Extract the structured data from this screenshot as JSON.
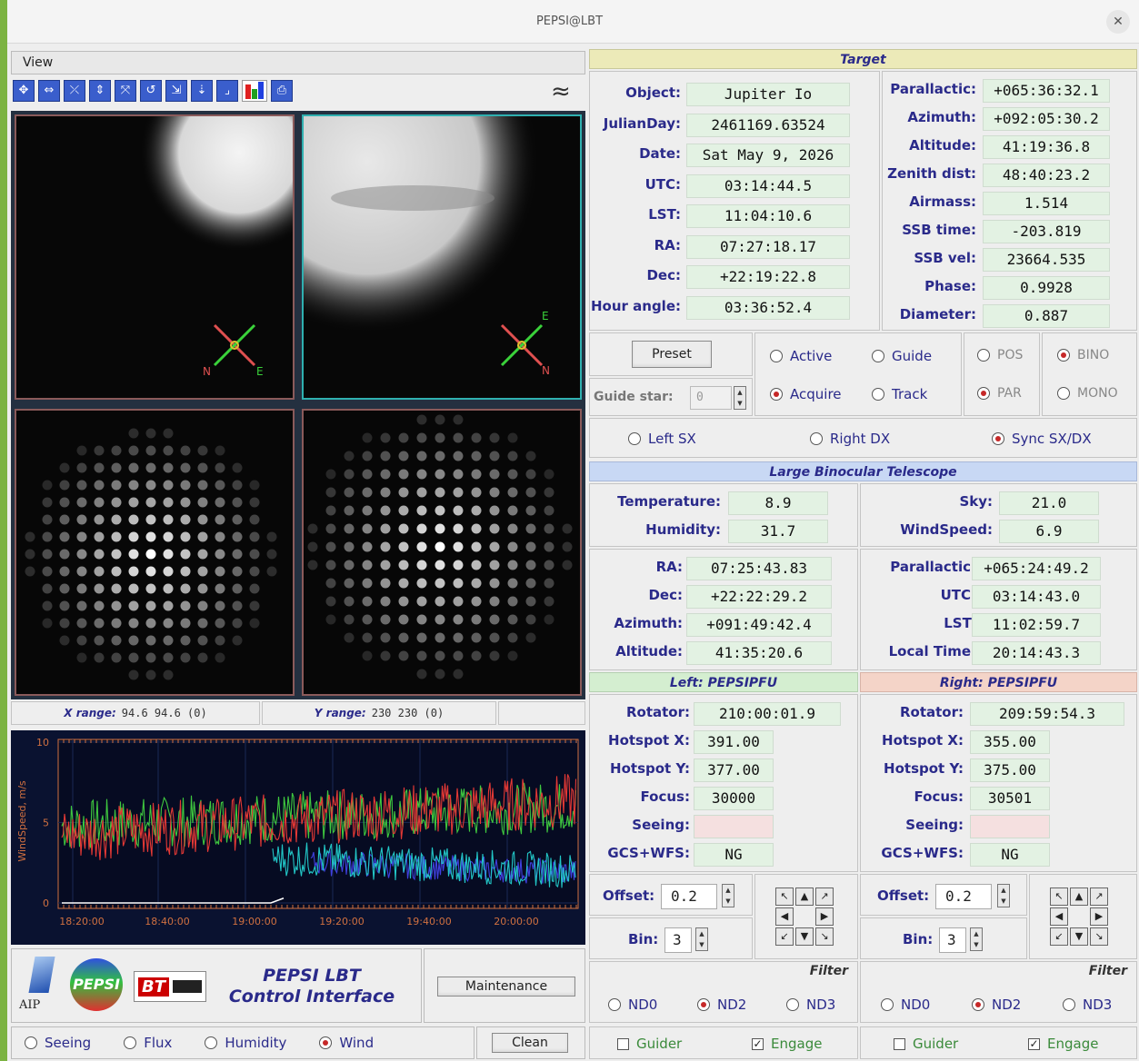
{
  "window": {
    "title": "PEPSI@LBT"
  },
  "menu": {
    "view": "View"
  },
  "toolbar": {
    "icons": [
      "move-icon",
      "horizontal-arrows-icon",
      "shrink-icon",
      "vertical-arrows-icon",
      "expand-icon",
      "rotate-left-icon",
      "flip-icon",
      "flip-down-icon",
      "flip-corner-icon",
      "histogram-icon",
      "print-icon"
    ],
    "wave_symbol": "≈"
  },
  "images": {
    "x_range_label": "X range:",
    "x_range_value": "94.6 94.6 (0)",
    "y_range_label": "Y range:",
    "y_range_value": "230 230 (0)",
    "compass": {
      "n": "N",
      "e": "E"
    }
  },
  "plot": {
    "ylabel": "WindSpeed, m/s",
    "y_ticks": [
      "10",
      "5",
      "0"
    ],
    "x_ticks": [
      "18:20:00",
      "18:40:00",
      "19:00:00",
      "19:20:00",
      "19:40:00",
      "20:00:00"
    ],
    "colors": {
      "red": "#e53935",
      "green": "#3fc93f",
      "cyan": "#22c7c7",
      "blue": "#4040e0",
      "white": "#ffffff"
    }
  },
  "branding": {
    "aip": "AIP",
    "pepsi": "PEPSI",
    "lbt": "BT",
    "title_line1": "PEPSI LBT",
    "title_line2": "Control Interface",
    "maintenance": "Maintenance"
  },
  "plot_select": {
    "options": [
      {
        "label": "Seeing",
        "on": false
      },
      {
        "label": "Flux",
        "on": false
      },
      {
        "label": "Humidity",
        "on": false
      },
      {
        "label": "Wind",
        "on": true
      }
    ],
    "clean": "Clean"
  },
  "target": {
    "header": "Target",
    "left": [
      {
        "label": "Object:",
        "value": "Jupiter Io"
      },
      {
        "label": "JulianDay:",
        "value": "2461169.63524"
      },
      {
        "label": "Date:",
        "value": "Sat May 9, 2026"
      },
      {
        "label": "UTC:",
        "value": "03:14:44.5"
      },
      {
        "label": "LST:",
        "value": "11:04:10.6"
      },
      {
        "label": "RA:",
        "value": "07:27:18.17"
      },
      {
        "label": "Dec:",
        "value": "+22:19:22.8"
      },
      {
        "label": "Hour angle:",
        "value": "03:36:52.4"
      }
    ],
    "right": [
      {
        "label": "Parallactic:",
        "value": "+065:36:32.1"
      },
      {
        "label": "Azimuth:",
        "value": "+092:05:30.2"
      },
      {
        "label": "Altitude:",
        "value": "41:19:36.8"
      },
      {
        "label": "Zenith dist:",
        "value": "48:40:23.2"
      },
      {
        "label": "Airmass:",
        "value": "1.514"
      },
      {
        "label": "SSB time:",
        "value": "-203.819"
      },
      {
        "label": "SSB vel:",
        "value": "23664.535"
      },
      {
        "label": "Phase:",
        "value": "0.9928"
      },
      {
        "label": "Diameter:",
        "value": "0.887"
      }
    ]
  },
  "controls": {
    "preset": "Preset",
    "guide_star_label": "Guide star:",
    "guide_star_value": "0",
    "mode": {
      "active": "Active",
      "guide": "Guide",
      "acquire": "Acquire",
      "track": "Track"
    },
    "pos": "POS",
    "par": "PAR",
    "bino": "BINO",
    "mono": "MONO",
    "side": {
      "left": "Left SX",
      "right": "Right DX",
      "sync": "Sync SX/DX"
    }
  },
  "lbt": {
    "header": "Large Binocular Telescope",
    "temperature": {
      "label": "Temperature:",
      "value": "8.9"
    },
    "humidity": {
      "label": "Humidity:",
      "value": "31.7"
    },
    "sky": {
      "label": "Sky:",
      "value": "21.0"
    },
    "windspeed": {
      "label": "WindSpeed:",
      "value": "6.9"
    },
    "left": [
      {
        "label": "RA:",
        "value": "07:25:43.83"
      },
      {
        "label": "Dec:",
        "value": "+22:22:29.2"
      },
      {
        "label": "Azimuth:",
        "value": "+091:49:42.4"
      },
      {
        "label": "Altitude:",
        "value": "41:35:20.6"
      }
    ],
    "right": [
      {
        "label": "Parallactic:",
        "value": "+065:24:49.2"
      },
      {
        "label": "UTC:",
        "value": "03:14:43.0"
      },
      {
        "label": "LST:",
        "value": "11:02:59.7"
      },
      {
        "label": "Local Time:",
        "value": "20:14:43.3"
      }
    ]
  },
  "left_pfu": {
    "header": "Left: PEPSIPFU",
    "fields": [
      {
        "label": "Rotator:",
        "value": "210:00:01.9"
      },
      {
        "label": "Hotspot X:",
        "value": "391.00"
      },
      {
        "label": "Hotspot Y:",
        "value": "377.00"
      },
      {
        "label": "Focus:",
        "value": "30000"
      },
      {
        "label": "Seeing:",
        "value": ""
      },
      {
        "label": "GCS+WFS:",
        "value": "NG"
      }
    ],
    "offset_label": "Offset:",
    "offset_value": "0.2",
    "bin_label": "Bin:",
    "bin_value": "3",
    "filter_label": "Filter",
    "nd0": "ND0",
    "nd2": "ND2",
    "nd3": "ND3",
    "guider": "Guider",
    "engage": "Engage"
  },
  "right_pfu": {
    "header": "Right: PEPSIPFU",
    "fields": [
      {
        "label": "Rotator:",
        "value": "209:59:54.3"
      },
      {
        "label": "Hotspot X:",
        "value": "355.00"
      },
      {
        "label": "Hotspot Y:",
        "value": "375.00"
      },
      {
        "label": "Focus:",
        "value": "30501"
      },
      {
        "label": "Seeing:",
        "value": ""
      },
      {
        "label": "GCS+WFS:",
        "value": "NG"
      }
    ],
    "offset_label": "Offset:",
    "offset_value": "0.2",
    "bin_label": "Bin:",
    "bin_value": "3",
    "filter_label": "Filter",
    "nd0": "ND0",
    "nd2": "ND2",
    "nd3": "ND3",
    "guider": "Guider",
    "engage": "Engage"
  }
}
